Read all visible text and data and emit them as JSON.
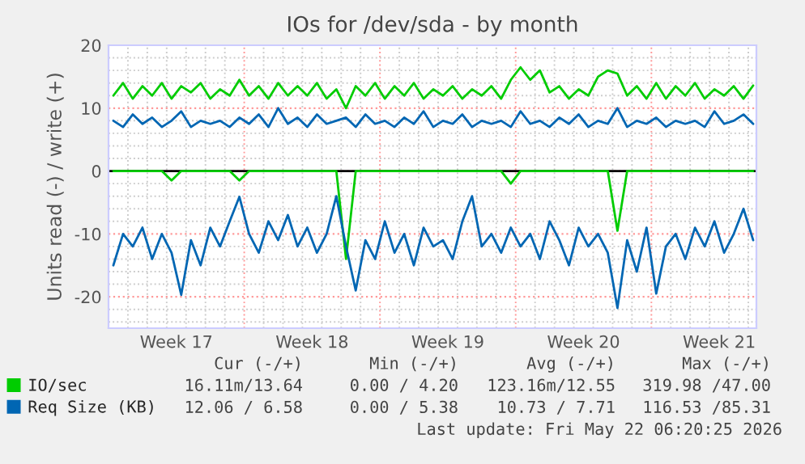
{
  "chart_data": {
    "type": "line",
    "title": "IOs for /dev/sda - by month",
    "ylabel": "Units read (-) / write (+)",
    "x": [
      "2026-04-20T06:00",
      "2026-04-20T18:00",
      "2026-04-21T06:00",
      "2026-04-21T18:00",
      "2026-04-22T06:00",
      "2026-04-22T18:00",
      "2026-04-23T06:00",
      "2026-04-23T18:00",
      "2026-04-24T06:00",
      "2026-04-24T18:00",
      "2026-04-25T06:00",
      "2026-04-25T18:00",
      "2026-04-26T06:00",
      "2026-04-26T18:00",
      "2026-04-27T06:00",
      "2026-04-27T18:00",
      "2026-04-28T06:00",
      "2026-04-28T18:00",
      "2026-04-29T06:00",
      "2026-04-29T18:00",
      "2026-04-30T06:00",
      "2026-04-30T18:00",
      "2026-05-01T06:00",
      "2026-05-01T18:00",
      "2026-05-02T06:00",
      "2026-05-02T18:00",
      "2026-05-03T06:00",
      "2026-05-03T18:00",
      "2026-05-04T06:00",
      "2026-05-04T18:00",
      "2026-05-05T06:00",
      "2026-05-05T18:00",
      "2026-05-06T06:00",
      "2026-05-06T18:00",
      "2026-05-07T06:00",
      "2026-05-07T18:00",
      "2026-05-08T06:00",
      "2026-05-08T18:00",
      "2026-05-09T06:00",
      "2026-05-09T18:00",
      "2026-05-10T06:00",
      "2026-05-10T18:00",
      "2026-05-11T06:00",
      "2026-05-11T18:00",
      "2026-05-12T06:00",
      "2026-05-12T18:00",
      "2026-05-13T06:00",
      "2026-05-13T18:00",
      "2026-05-14T06:00",
      "2026-05-14T18:00",
      "2026-05-15T06:00",
      "2026-05-15T18:00",
      "2026-05-16T06:00",
      "2026-05-16T18:00",
      "2026-05-17T06:00",
      "2026-05-17T18:00",
      "2026-05-18T06:00",
      "2026-05-18T18:00",
      "2026-05-19T06:00",
      "2026-05-19T18:00",
      "2026-05-20T06:00",
      "2026-05-20T18:00",
      "2026-05-21T06:00",
      "2026-05-21T18:00",
      "2026-05-22T06:00",
      "2026-05-22T18:00",
      "2026-05-23T06:00"
    ],
    "series": [
      {
        "name": "IO/sec",
        "color": "#00cc00",
        "values": [
          12,
          14,
          11.5,
          13.5,
          12,
          14,
          11.5,
          13.5,
          12.5,
          14,
          11.5,
          13,
          12,
          14.5,
          12,
          13.5,
          11.5,
          14,
          12,
          13.5,
          12,
          14,
          11.5,
          13,
          10,
          13.5,
          12,
          14,
          11.5,
          13.5,
          12,
          14,
          11.5,
          13,
          12,
          13.5,
          11.5,
          13,
          12,
          13.5,
          11.5,
          14.5,
          16.5,
          14.5,
          16,
          12.5,
          13.5,
          11.5,
          13,
          12,
          15,
          16,
          15.5,
          12,
          13.5,
          11.5,
          14,
          11.5,
          13.5,
          12,
          14,
          11.5,
          13,
          12,
          13.5,
          11.5,
          13.6
        ]
      },
      {
        "color": "#00cc00",
        "values": [
          0,
          0,
          0,
          0,
          0,
          0,
          -1.5,
          0,
          0,
          0,
          0,
          0,
          0,
          -1.5,
          0,
          0,
          0,
          0,
          0,
          0,
          0,
          0,
          0,
          0,
          -14,
          0,
          0,
          0,
          0,
          0,
          0,
          0,
          0,
          0,
          0,
          0,
          0,
          0,
          0,
          0,
          0,
          -2,
          0,
          0,
          0,
          0,
          0,
          0,
          0,
          0,
          0,
          0,
          -9.5,
          0,
          0,
          0,
          0,
          0,
          0,
          0,
          0,
          0,
          0,
          0,
          0,
          0,
          0
        ]
      },
      {
        "name": "Req Size (KB)",
        "color": "#0066b3",
        "values": [
          8,
          7,
          9,
          7.5,
          8.5,
          7,
          8,
          9.5,
          7,
          8,
          7.5,
          8,
          7,
          8.5,
          7.5,
          9,
          7,
          10,
          7.5,
          8.5,
          7,
          9,
          7.5,
          8,
          8.5,
          7,
          9,
          7.5,
          8,
          7,
          8.5,
          7.5,
          9.5,
          7,
          8,
          7.5,
          9,
          7,
          8,
          7.5,
          8,
          7,
          9.5,
          7.5,
          8,
          7,
          8.5,
          7.5,
          9,
          7,
          8,
          7.5,
          10,
          7,
          8,
          7.5,
          8.5,
          7,
          8,
          7.5,
          8,
          7,
          9.5,
          7.5,
          8,
          9,
          7.5
        ]
      },
      {
        "color": "#0066b3",
        "values": [
          -15,
          -10,
          -12,
          -9,
          -14,
          -10,
          -13,
          -19.7,
          -11,
          -15,
          -9,
          -12,
          -8,
          -4.1,
          -10,
          -13,
          -8,
          -11,
          -7,
          -12,
          -9,
          -13,
          -10,
          -4,
          -12,
          -19,
          -11,
          -14,
          -8,
          -13,
          -10,
          -15,
          -9,
          -12,
          -11,
          -14,
          -8,
          -4,
          -12,
          -10,
          -13,
          -9,
          -12,
          -10,
          -14,
          -8,
          -11,
          -15,
          -9,
          -12,
          -10,
          -13,
          -21.8,
          -11,
          -16,
          -9,
          -19.5,
          -12,
          -10,
          -14,
          -9,
          -12,
          -8,
          -13,
          -10,
          -6,
          -11
        ]
      }
    ],
    "xlim": [
      "2026-04-20T00:00",
      "2026-05-23T10:00"
    ],
    "xticks": [
      {
        "value": "2026-04-23T12:00",
        "label": "Week 17"
      },
      {
        "value": "2026-04-30T12:00",
        "label": "Week 18"
      },
      {
        "value": "2026-05-07T12:00",
        "label": "Week 19"
      },
      {
        "value": "2026-05-14T12:00",
        "label": "Week 20"
      },
      {
        "value": "2026-05-21T12:00",
        "label": "Week 21"
      }
    ],
    "ylim": [
      -25,
      20
    ],
    "yticks": [
      -20,
      -10,
      0,
      10,
      20
    ],
    "ref_lines": [
      {
        "axis": "y",
        "value": 0,
        "color": "#000000"
      }
    ],
    "grid": true,
    "legend": "bottom",
    "marker": "none",
    "line_style": "solid",
    "annotations": [
      "Cur (-/+)",
      "Min (-/+)",
      "Avg (-/+)",
      "Max (-/+)",
      "16.11m/13.64",
      "0.00 / 4.20",
      "123.16m/12.55",
      "319.98 /47.00",
      "12.06 / 6.58",
      "0.00 / 5.38",
      "10.73 / 7.71",
      "116.53 /85.31",
      "Last update: Fri May 22 06:20:25 2026"
    ]
  }
}
